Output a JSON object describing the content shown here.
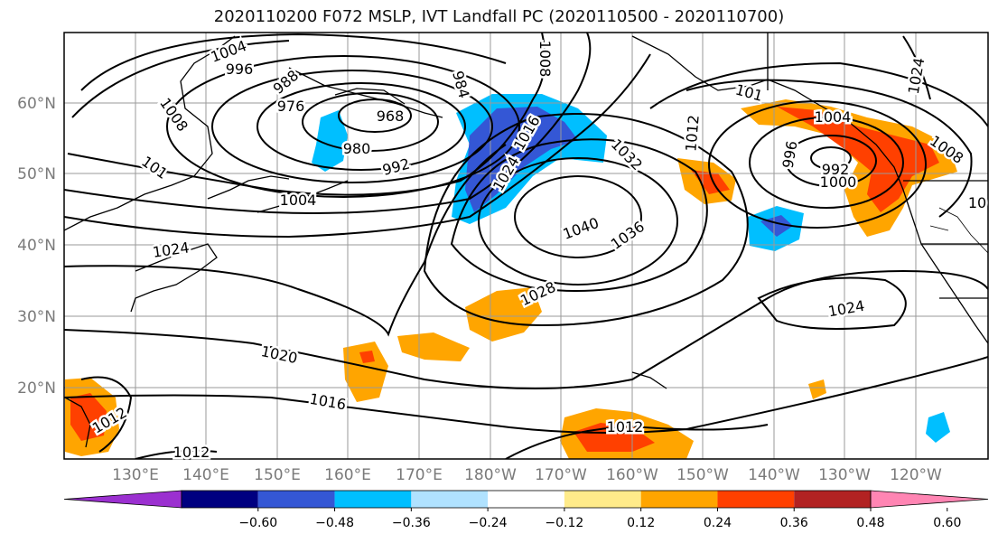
{
  "title": "2020110200 F072 MSLP, IVT Landfall PC (2020110500 - 2020110700)",
  "lat_labels": [
    "60°N",
    "50°N",
    "40°N",
    "30°N",
    "20°N"
  ],
  "lon_labels": [
    "130°E",
    "140°E",
    "150°E",
    "160°E",
    "170°E",
    "180°W",
    "170°W",
    "160°W",
    "150°W",
    "140°W",
    "130°W",
    "120°W"
  ],
  "isobar_labels": [
    {
      "t": "1004"
    },
    {
      "t": "996"
    },
    {
      "t": "988"
    },
    {
      "t": "976"
    },
    {
      "t": "968"
    },
    {
      "t": "980"
    },
    {
      "t": "992"
    },
    {
      "t": "1008"
    },
    {
      "t": "101"
    },
    {
      "t": "1004"
    },
    {
      "t": "1024"
    },
    {
      "t": "984"
    },
    {
      "t": "1008"
    },
    {
      "t": "1016"
    },
    {
      "t": "1024"
    },
    {
      "t": "1032"
    },
    {
      "t": "1040"
    },
    {
      "t": "1036"
    },
    {
      "t": "1028"
    },
    {
      "t": "1020"
    },
    {
      "t": "1016"
    },
    {
      "t": "1012"
    },
    {
      "t": "1012"
    },
    {
      "t": "1012"
    },
    {
      "t": "1012"
    },
    {
      "t": "101"
    },
    {
      "t": "1004"
    },
    {
      "t": "996"
    },
    {
      "t": "992"
    },
    {
      "t": "1000"
    },
    {
      "t": "1008"
    },
    {
      "t": "1024"
    },
    {
      "t": "1024"
    },
    {
      "t": "10"
    }
  ],
  "colorbar": {
    "ticks": [
      "−0.60",
      "−0.48",
      "−0.36",
      "−0.24",
      "−0.12",
      "0.12",
      "0.24",
      "0.36",
      "0.48",
      "0.60"
    ],
    "colors": [
      "#9b30d0",
      "#000080",
      "#3457d5",
      "#00bfff",
      "#b0e2ff",
      "#ffffff",
      "#ffeb8a",
      "#ffa500",
      "#ff4000",
      "#b22222",
      "#ff85b3"
    ]
  },
  "colors": {
    "neg_strong": "#3457d5",
    "neg_mid": "#00bfff",
    "neg_weak": "#b0e2ff",
    "pos_weak": "#ffeb8a",
    "pos_mid": "#ffa500",
    "pos_strong": "#ff4000",
    "pos_max": "#b22222"
  }
}
